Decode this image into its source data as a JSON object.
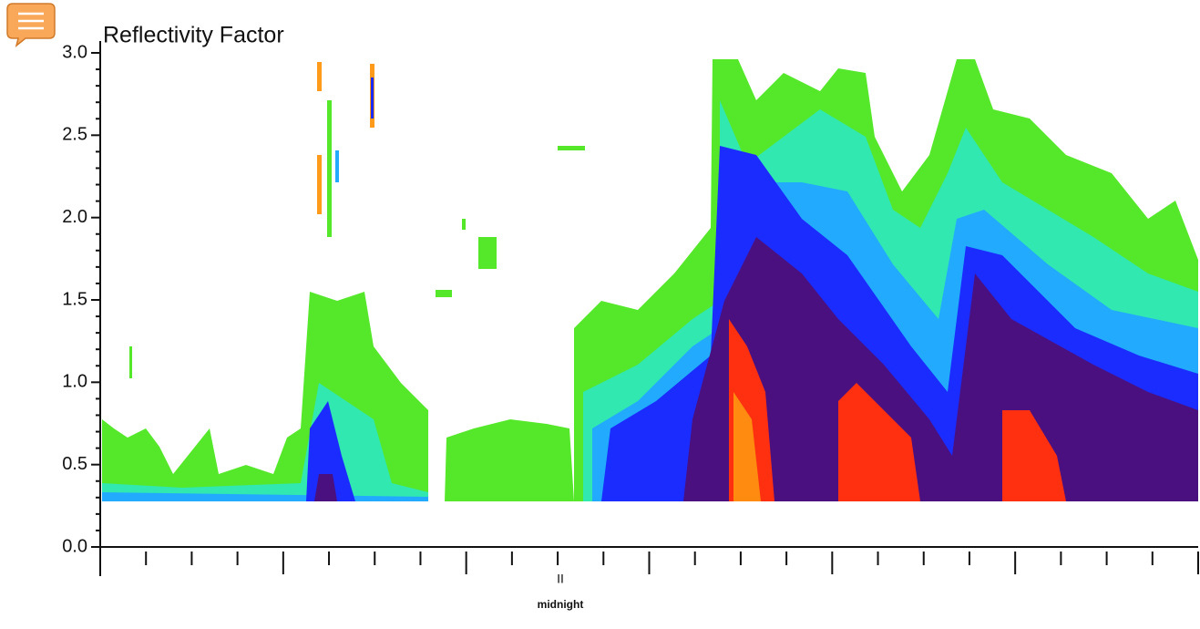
{
  "chart_data": {
    "type": "heatmap",
    "title": "Reflectivity Factor",
    "ylim": [
      0,
      3
    ],
    "yticks": [
      {
        "value": 0,
        "label": "0.0"
      },
      0.5,
      {
        "value": 1,
        "label": "1.0"
      },
      1.5,
      {
        "value": 2,
        "label": "2.0"
      },
      2.5,
      {
        "value": 3,
        "label": "3.0"
      }
    ],
    "x_labels": [
      "II",
      "midnight"
    ]
  }
}
